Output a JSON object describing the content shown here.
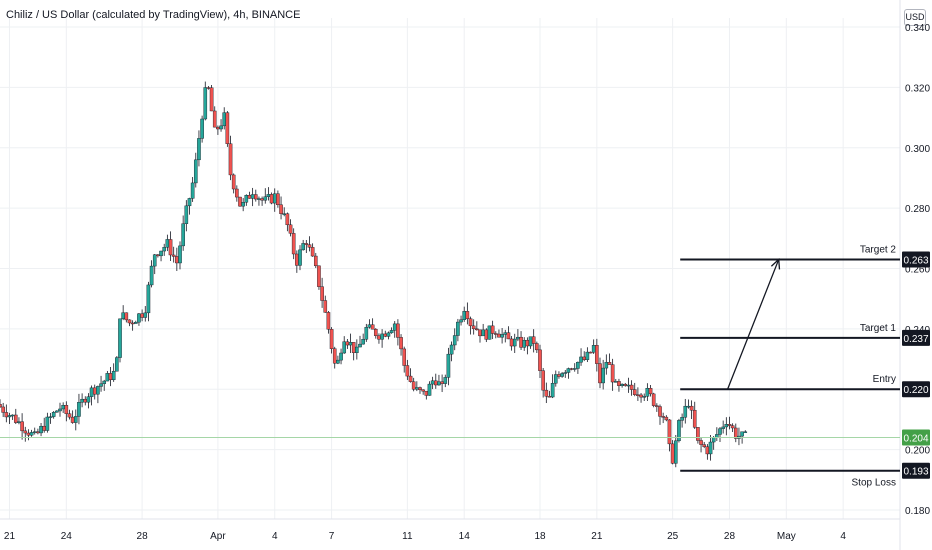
{
  "header": {
    "title": "Chiliz / US Dollar (calculated by TradingView), 4h, BINANCE",
    "currency": "USD"
  },
  "colors": {
    "up": "#26a69a",
    "down": "#ef5350",
    "wick": "#131722",
    "grid": "#eef0f3",
    "level": "#131722",
    "current_line": "#a5d6a7",
    "current_label_bg": "#43a047",
    "level_label_bg": "#131722"
  },
  "chart_data": {
    "type": "candlestick",
    "y_axis": {
      "ticks": [
        "0.340",
        "0.320",
        "0.300",
        "0.280",
        "0.260",
        "0.240",
        "0.220",
        "0.200",
        "0.180"
      ],
      "tick_values": [
        0.34,
        0.32,
        0.3,
        0.28,
        0.26,
        0.24,
        0.22,
        0.2,
        0.18
      ],
      "range": [
        0.177,
        0.343
      ],
      "side": "right"
    },
    "x_axis": {
      "ticks": [
        "21",
        "24",
        "28",
        "Apr",
        "4",
        "7",
        "11",
        "14",
        "18",
        "21",
        "25",
        "28",
        "May",
        "4"
      ],
      "tick_days": [
        20,
        23,
        27,
        31,
        34,
        37,
        41,
        44,
        48,
        51,
        55,
        58,
        61,
        64
      ],
      "range_days": [
        19.5,
        67.0
      ]
    },
    "price_path": [
      [
        19.5,
        0.215
      ],
      [
        20.5,
        0.21
      ],
      [
        21.5,
        0.204
      ],
      [
        22.0,
        0.208
      ],
      [
        22.8,
        0.214
      ],
      [
        23.5,
        0.21
      ],
      [
        24.2,
        0.218
      ],
      [
        25.0,
        0.222
      ],
      [
        25.8,
        0.226
      ],
      [
        26.0,
        0.245
      ],
      [
        26.5,
        0.242
      ],
      [
        27.3,
        0.246
      ],
      [
        27.8,
        0.265
      ],
      [
        28.5,
        0.268
      ],
      [
        29.0,
        0.262
      ],
      [
        29.4,
        0.276
      ],
      [
        29.9,
        0.29
      ],
      [
        30.3,
        0.31
      ],
      [
        30.6,
        0.322
      ],
      [
        31.0,
        0.305
      ],
      [
        31.5,
        0.31
      ],
      [
        31.8,
        0.292
      ],
      [
        32.4,
        0.28
      ],
      [
        33.0,
        0.286
      ],
      [
        33.6,
        0.282
      ],
      [
        34.2,
        0.284
      ],
      [
        34.8,
        0.275
      ],
      [
        35.3,
        0.262
      ],
      [
        35.8,
        0.27
      ],
      [
        36.4,
        0.258
      ],
      [
        37.0,
        0.24
      ],
      [
        37.4,
        0.226
      ],
      [
        37.8,
        0.238
      ],
      [
        38.5,
        0.232
      ],
      [
        39.0,
        0.24
      ],
      [
        39.8,
        0.238
      ],
      [
        40.5,
        0.242
      ],
      [
        41.0,
        0.228
      ],
      [
        41.5,
        0.22
      ],
      [
        42.1,
        0.218
      ],
      [
        42.6,
        0.224
      ],
      [
        43.0,
        0.22
      ],
      [
        43.6,
        0.238
      ],
      [
        44.2,
        0.248
      ],
      [
        44.5,
        0.242
      ],
      [
        45.2,
        0.238
      ],
      [
        45.8,
        0.24
      ],
      [
        46.5,
        0.236
      ],
      [
        47.3,
        0.235
      ],
      [
        47.9,
        0.236
      ],
      [
        48.3,
        0.22
      ],
      [
        48.6,
        0.215
      ],
      [
        49.0,
        0.225
      ],
      [
        49.8,
        0.228
      ],
      [
        50.6,
        0.23
      ],
      [
        51.0,
        0.234
      ],
      [
        51.3,
        0.222
      ],
      [
        51.7,
        0.23
      ],
      [
        52.2,
        0.22
      ],
      [
        53.0,
        0.22
      ],
      [
        53.8,
        0.219
      ],
      [
        54.3,
        0.215
      ],
      [
        54.8,
        0.21
      ],
      [
        55.1,
        0.195
      ],
      [
        55.5,
        0.208
      ],
      [
        56.0,
        0.216
      ],
      [
        56.5,
        0.202
      ],
      [
        57.0,
        0.2
      ],
      [
        57.5,
        0.205
      ],
      [
        58.0,
        0.21
      ],
      [
        58.5,
        0.205
      ],
      [
        58.9,
        0.204
      ]
    ],
    "levels": [
      {
        "name": "Target 2",
        "value": 0.263,
        "label": "0.263"
      },
      {
        "name": "Target 1",
        "value": 0.237,
        "label": "0.237"
      },
      {
        "name": "Entry",
        "value": 0.22,
        "label": "0.220"
      },
      {
        "name": "Stop Loss",
        "value": 0.193,
        "label": "0.193"
      }
    ],
    "levels_start_day": 55.4,
    "current_price": {
      "value": 0.204,
      "label": "0.204"
    },
    "arrow": {
      "from": [
        57.9,
        0.22
      ],
      "to": [
        60.6,
        0.263
      ]
    }
  }
}
